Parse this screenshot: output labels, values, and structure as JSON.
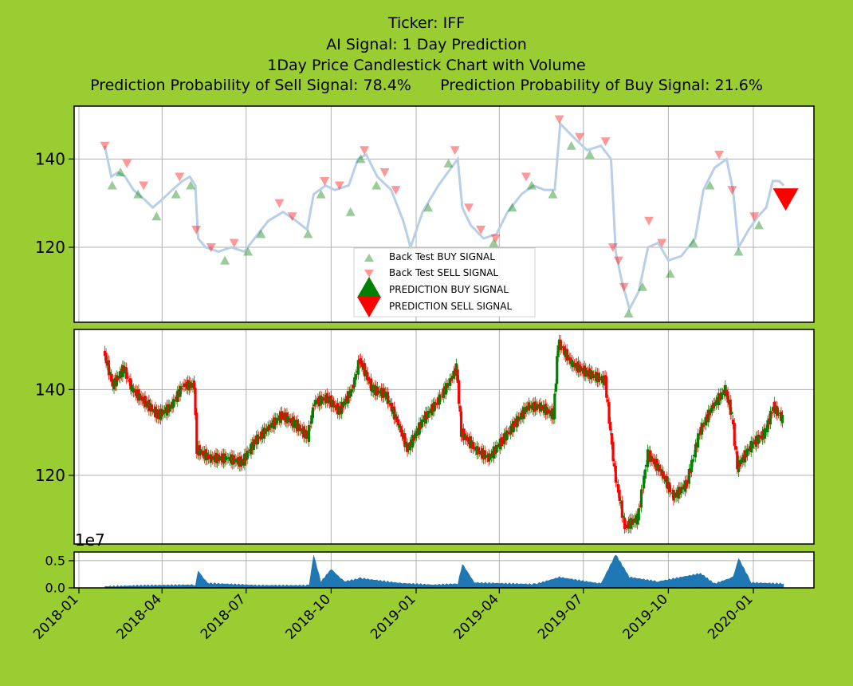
{
  "title": {
    "line1": "Ticker: IFF",
    "line2": "AI Signal: 1 Day Prediction",
    "line3": "1Day Price Candlestick Chart with Volume",
    "sell_prob": "Prediction Probability of Sell Signal: 78.4%",
    "buy_prob": "Prediction Probability of Buy Signal: 21.6%"
  },
  "colors": {
    "background": "#9acd32",
    "price_line": "#b7d0e8",
    "buy": "#008000",
    "sell": "#ff0000",
    "volume": "#1f77b4"
  },
  "chart_data": [
    {
      "type": "line",
      "panel": "signals",
      "ylim": [
        103,
        152
      ],
      "y_ticks": [
        "120",
        "140"
      ],
      "grid": true,
      "legend_placement": "lower-center",
      "legend": [
        "Back Test BUY SIGNAL",
        "Back Test SELL SIGNAL",
        "PREDICTION BUY SIGNAL",
        "PREDICTION SELL SIGNAL"
      ],
      "price_series": [
        [
          "2018-01-29",
          143
        ],
        [
          "2018-02-05",
          136
        ],
        [
          "2018-02-12",
          137
        ],
        [
          "2018-02-20",
          136
        ],
        [
          "2018-03-01",
          133
        ],
        [
          "2018-03-12",
          131
        ],
        [
          "2018-03-22",
          129
        ],
        [
          "2018-04-02",
          131
        ],
        [
          "2018-04-12",
          133
        ],
        [
          "2018-04-23",
          135
        ],
        [
          "2018-05-01",
          136
        ],
        [
          "2018-05-07",
          134
        ],
        [
          "2018-05-10",
          122
        ],
        [
          "2018-05-18",
          120
        ],
        [
          "2018-06-01",
          119
        ],
        [
          "2018-06-15",
          120
        ],
        [
          "2018-06-29",
          119
        ],
        [
          "2018-07-10",
          122
        ],
        [
          "2018-07-25",
          126
        ],
        [
          "2018-08-10",
          128
        ],
        [
          "2018-08-24",
          126
        ],
        [
          "2018-09-05",
          124
        ],
        [
          "2018-09-12",
          132
        ],
        [
          "2018-09-25",
          134
        ],
        [
          "2018-10-05",
          133
        ],
        [
          "2018-10-20",
          134
        ],
        [
          "2018-10-30",
          140
        ],
        [
          "2018-11-08",
          141
        ],
        [
          "2018-11-20",
          136
        ],
        [
          "2018-12-05",
          133
        ],
        [
          "2018-12-18",
          126
        ],
        [
          "2018-12-26",
          120
        ],
        [
          "2019-01-08",
          128
        ],
        [
          "2019-01-25",
          134
        ],
        [
          "2019-02-08",
          138
        ],
        [
          "2019-02-15",
          140
        ],
        [
          "2019-02-20",
          129
        ],
        [
          "2019-03-01",
          125
        ],
        [
          "2019-03-15",
          122
        ],
        [
          "2019-03-29",
          123
        ],
        [
          "2019-04-10",
          128
        ],
        [
          "2019-04-25",
          132
        ],
        [
          "2019-05-08",
          134
        ],
        [
          "2019-05-20",
          133
        ],
        [
          "2019-05-31",
          133
        ],
        [
          "2019-06-06",
          148
        ],
        [
          "2019-06-20",
          145
        ],
        [
          "2019-07-05",
          142
        ],
        [
          "2019-07-20",
          143
        ],
        [
          "2019-07-31",
          140
        ],
        [
          "2019-08-05",
          119
        ],
        [
          "2019-08-12",
          112
        ],
        [
          "2019-08-20",
          106
        ],
        [
          "2019-08-30",
          110
        ],
        [
          "2019-09-09",
          120
        ],
        [
          "2019-09-20",
          121
        ],
        [
          "2019-10-01",
          117
        ],
        [
          "2019-10-15",
          118
        ],
        [
          "2019-10-30",
          122
        ],
        [
          "2019-11-08",
          133
        ],
        [
          "2019-11-20",
          138
        ],
        [
          "2019-12-03",
          140
        ],
        [
          "2019-12-10",
          133
        ],
        [
          "2019-12-16",
          120
        ],
        [
          "2019-12-27",
          124
        ],
        [
          "2020-01-06",
          127
        ],
        [
          "2020-01-15",
          129
        ],
        [
          "2020-01-22",
          135
        ],
        [
          "2020-01-29",
          135
        ],
        [
          "2020-02-03",
          134
        ]
      ],
      "backtest_buy": [
        [
          "2018-02-06",
          134
        ],
        [
          "2018-02-15",
          137
        ],
        [
          "2018-03-06",
          132
        ],
        [
          "2018-03-26",
          127
        ],
        [
          "2018-04-16",
          132
        ],
        [
          "2018-05-02",
          134
        ],
        [
          "2018-06-08",
          117
        ],
        [
          "2018-07-03",
          119
        ],
        [
          "2018-07-17",
          123
        ],
        [
          "2018-09-06",
          123
        ],
        [
          "2018-09-20",
          132
        ],
        [
          "2018-10-22",
          128
        ],
        [
          "2018-11-02",
          140
        ],
        [
          "2018-11-19",
          134
        ],
        [
          "2018-12-24",
          119
        ],
        [
          "2019-01-14",
          129
        ],
        [
          "2019-02-05",
          139
        ],
        [
          "2019-03-26",
          121
        ],
        [
          "2019-04-15",
          129
        ],
        [
          "2019-05-06",
          134
        ],
        [
          "2019-05-29",
          132
        ],
        [
          "2019-06-18",
          143
        ],
        [
          "2019-07-08",
          141
        ],
        [
          "2019-08-19",
          105
        ],
        [
          "2019-09-03",
          111
        ],
        [
          "2019-10-03",
          114
        ],
        [
          "2019-10-28",
          121
        ],
        [
          "2019-11-15",
          134
        ],
        [
          "2019-12-16",
          119
        ],
        [
          "2020-01-07",
          125
        ]
      ],
      "backtest_sell": [
        [
          "2018-01-29",
          143
        ],
        [
          "2018-02-22",
          139
        ],
        [
          "2018-03-12",
          134
        ],
        [
          "2018-04-20",
          136
        ],
        [
          "2018-05-08",
          124
        ],
        [
          "2018-05-24",
          120
        ],
        [
          "2018-06-18",
          121
        ],
        [
          "2018-08-06",
          130
        ],
        [
          "2018-08-20",
          127
        ],
        [
          "2018-09-24",
          135
        ],
        [
          "2018-10-10",
          134
        ],
        [
          "2018-11-06",
          142
        ],
        [
          "2018-11-28",
          137
        ],
        [
          "2018-12-10",
          133
        ],
        [
          "2019-02-12",
          142
        ],
        [
          "2019-02-27",
          129
        ],
        [
          "2019-03-12",
          124
        ],
        [
          "2019-03-28",
          122
        ],
        [
          "2019-04-30",
          136
        ],
        [
          "2019-06-05",
          149
        ],
        [
          "2019-06-27",
          145
        ],
        [
          "2019-07-25",
          144
        ],
        [
          "2019-08-02",
          120
        ],
        [
          "2019-08-08",
          117
        ],
        [
          "2019-08-14",
          111
        ],
        [
          "2019-09-10",
          126
        ],
        [
          "2019-09-24",
          121
        ],
        [
          "2019-11-25",
          141
        ],
        [
          "2019-12-09",
          133
        ],
        [
          "2020-01-02",
          127
        ]
      ],
      "prediction_sell": [
        [
          "2020-02-05",
          131
        ]
      ]
    },
    {
      "type": "candlestick",
      "panel": "price",
      "ylim": [
        104,
        154
      ],
      "y_ticks": [
        "120",
        "140"
      ],
      "grid": true,
      "up_color": "#008000",
      "down_color": "#ff0000",
      "close_series": [
        [
          "2018-01-29",
          149
        ],
        [
          "2018-02-08",
          141
        ],
        [
          "2018-02-20",
          145
        ],
        [
          "2018-03-01",
          140
        ],
        [
          "2018-03-15",
          137
        ],
        [
          "2018-03-29",
          134
        ],
        [
          "2018-04-12",
          136
        ],
        [
          "2018-04-25",
          141
        ],
        [
          "2018-05-07",
          141
        ],
        [
          "2018-05-10",
          126
        ],
        [
          "2018-05-24",
          124
        ],
        [
          "2018-06-12",
          124
        ],
        [
          "2018-06-28",
          123
        ],
        [
          "2018-07-12",
          128
        ],
        [
          "2018-07-26",
          131
        ],
        [
          "2018-08-10",
          134
        ],
        [
          "2018-08-24",
          132
        ],
        [
          "2018-09-07",
          129
        ],
        [
          "2018-09-14",
          137
        ],
        [
          "2018-09-28",
          138
        ],
        [
          "2018-10-11",
          135
        ],
        [
          "2018-10-25",
          140
        ],
        [
          "2018-11-02",
          147
        ],
        [
          "2018-11-16",
          140
        ],
        [
          "2018-11-30",
          139
        ],
        [
          "2018-12-14",
          132
        ],
        [
          "2018-12-24",
          126
        ],
        [
          "2019-01-10",
          133
        ],
        [
          "2019-01-25",
          137
        ],
        [
          "2019-02-08",
          142
        ],
        [
          "2019-02-15",
          145
        ],
        [
          "2019-02-20",
          130
        ],
        [
          "2019-03-08",
          126
        ],
        [
          "2019-03-22",
          124
        ],
        [
          "2019-04-05",
          128
        ],
        [
          "2019-04-19",
          132
        ],
        [
          "2019-05-03",
          136
        ],
        [
          "2019-05-17",
          136
        ],
        [
          "2019-05-31",
          134
        ],
        [
          "2019-06-05",
          151
        ],
        [
          "2019-06-20",
          146
        ],
        [
          "2019-07-05",
          144
        ],
        [
          "2019-07-26",
          142
        ],
        [
          "2019-08-05",
          121
        ],
        [
          "2019-08-16",
          108
        ],
        [
          "2019-08-30",
          110
        ],
        [
          "2019-09-10",
          125
        ],
        [
          "2019-09-24",
          121
        ],
        [
          "2019-10-08",
          115
        ],
        [
          "2019-10-22",
          118
        ],
        [
          "2019-11-05",
          130
        ],
        [
          "2019-11-19",
          136
        ],
        [
          "2019-12-03",
          140
        ],
        [
          "2019-12-10",
          134
        ],
        [
          "2019-12-16",
          122
        ],
        [
          "2019-12-31",
          127
        ],
        [
          "2020-01-15",
          130
        ],
        [
          "2020-01-24",
          136
        ],
        [
          "2020-02-03",
          133
        ]
      ]
    },
    {
      "type": "area",
      "panel": "volume",
      "ylim": [
        0,
        0.66
      ],
      "y_ticks": [
        "0.0",
        "0.5"
      ],
      "offset_label": "1e7",
      "grid": true,
      "x_tick_labels": [
        "2018-01",
        "2018-04",
        "2018-07",
        "2018-10",
        "2019-01",
        "2019-04",
        "2019-07",
        "2019-10",
        "2020-01"
      ],
      "series": [
        [
          "2018-01-29",
          0.03
        ],
        [
          "2018-03-15",
          0.05
        ],
        [
          "2018-05-07",
          0.06
        ],
        [
          "2018-05-10",
          0.32
        ],
        [
          "2018-05-20",
          0.09
        ],
        [
          "2018-07-15",
          0.05
        ],
        [
          "2018-09-07",
          0.05
        ],
        [
          "2018-09-12",
          0.62
        ],
        [
          "2018-09-20",
          0.12
        ],
        [
          "2018-10-01",
          0.35
        ],
        [
          "2018-10-15",
          0.12
        ],
        [
          "2018-11-02",
          0.18
        ],
        [
          "2018-12-15",
          0.09
        ],
        [
          "2019-01-20",
          0.06
        ],
        [
          "2019-02-15",
          0.08
        ],
        [
          "2019-02-20",
          0.45
        ],
        [
          "2019-03-05",
          0.1
        ],
        [
          "2019-05-10",
          0.07
        ],
        [
          "2019-06-05",
          0.2
        ],
        [
          "2019-07-20",
          0.08
        ],
        [
          "2019-08-05",
          0.62
        ],
        [
          "2019-08-20",
          0.2
        ],
        [
          "2019-09-20",
          0.12
        ],
        [
          "2019-11-05",
          0.27
        ],
        [
          "2019-11-20",
          0.08
        ],
        [
          "2019-12-10",
          0.2
        ],
        [
          "2019-12-16",
          0.55
        ],
        [
          "2019-12-30",
          0.1
        ],
        [
          "2020-02-03",
          0.08
        ]
      ]
    }
  ]
}
